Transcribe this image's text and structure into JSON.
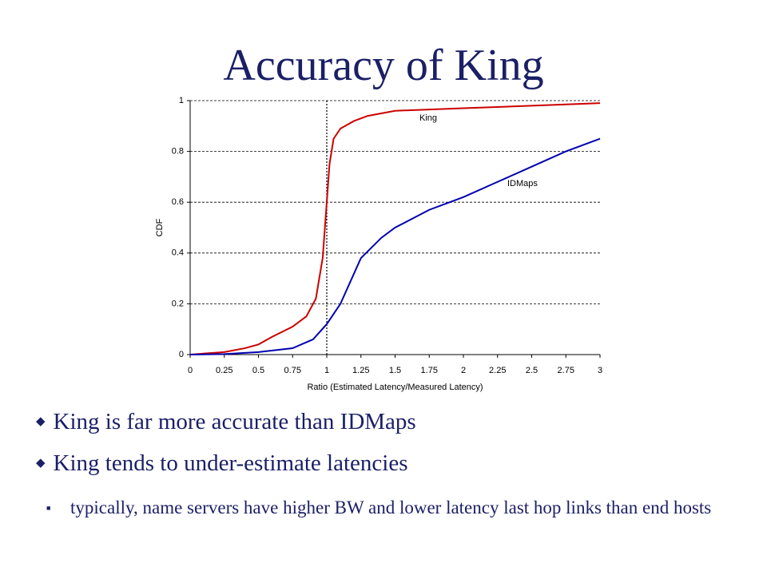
{
  "title": "Accuracy of King",
  "chart_data": {
    "type": "line",
    "xlabel": "Ratio (Estimated Latency/Measured Latency)",
    "ylabel": "CDF",
    "xlim": [
      0,
      3
    ],
    "ylim": [
      0,
      1
    ],
    "xticks": [
      0,
      0.25,
      0.5,
      0.75,
      1,
      1.25,
      1.5,
      1.75,
      2,
      2.25,
      2.5,
      2.75,
      3
    ],
    "yticks": [
      0,
      0.2,
      0.4,
      0.6,
      0.8,
      1
    ],
    "grid": true,
    "vline": 1,
    "series": [
      {
        "name": "King",
        "color": "#cc0000",
        "x": [
          0,
          0.25,
          0.4,
          0.5,
          0.6,
          0.75,
          0.85,
          0.92,
          0.97,
          1.0,
          1.02,
          1.05,
          1.1,
          1.2,
          1.3,
          1.5,
          2.0,
          2.5,
          3
        ],
        "values": [
          0,
          0.01,
          0.025,
          0.04,
          0.07,
          0.11,
          0.15,
          0.22,
          0.38,
          0.6,
          0.75,
          0.85,
          0.89,
          0.92,
          0.94,
          0.96,
          0.97,
          0.98,
          0.99
        ]
      },
      {
        "name": "IDMaps",
        "color": "#0000b0",
        "x": [
          0,
          0.25,
          0.5,
          0.75,
          0.9,
          1.0,
          1.1,
          1.25,
          1.4,
          1.5,
          1.75,
          2.0,
          2.25,
          2.5,
          2.75,
          3
        ],
        "values": [
          0,
          0.002,
          0.01,
          0.025,
          0.06,
          0.12,
          0.2,
          0.38,
          0.46,
          0.5,
          0.57,
          0.62,
          0.68,
          0.74,
          0.8,
          0.85
        ]
      }
    ]
  },
  "bullets": [
    "King is far more accurate than IDMaps",
    "King tends to under-estimate latencies"
  ],
  "sub_bullets": [
    "typically, name servers have higher BW and lower latency last hop links than end hosts"
  ]
}
